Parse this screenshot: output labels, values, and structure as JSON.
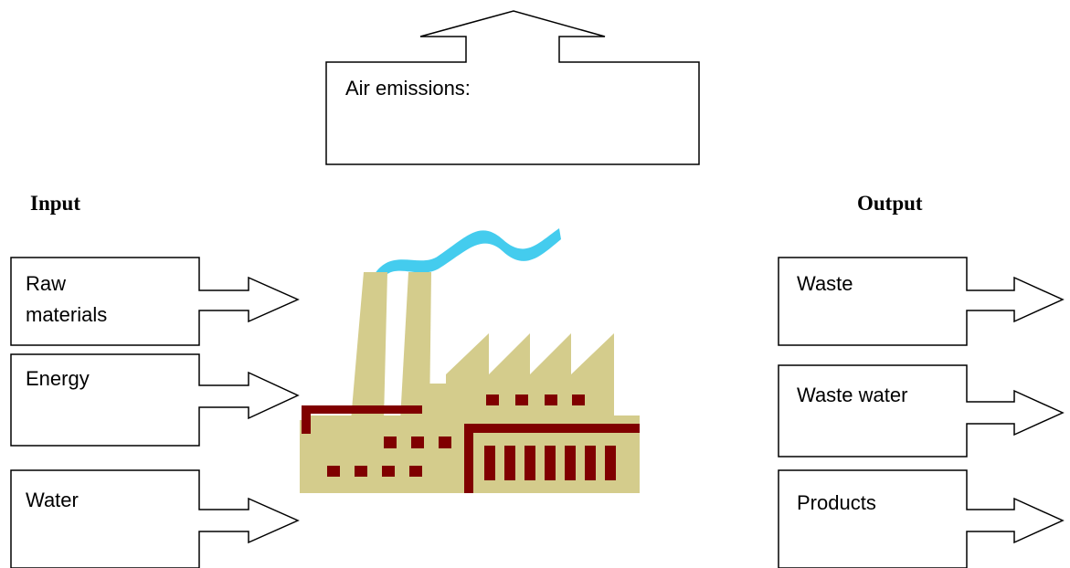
{
  "emissions": {
    "label": "Air emissions:"
  },
  "input": {
    "title": "Input",
    "items": [
      "Raw",
      "materials",
      "Energy",
      "Water"
    ]
  },
  "output": {
    "title": "Output",
    "items": [
      "Waste",
      "Waste water",
      "Products"
    ]
  }
}
